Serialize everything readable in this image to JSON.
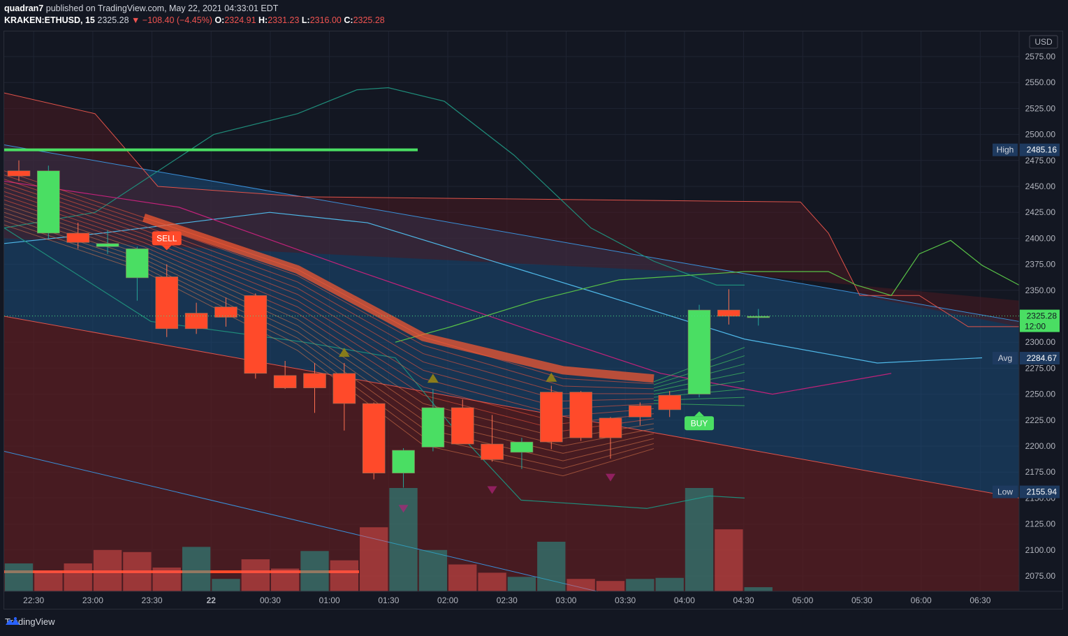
{
  "header": {
    "author": "quadran7",
    "published_text": "published on TradingView.com, May 22, 2021 04:33:01 EDT",
    "symbol": "KRAKEN:ETHUSD, 15",
    "last": "2325.28",
    "change": "▼ −108.40 (−4.45%)",
    "o_label": "O:",
    "o": "2324.91",
    "h_label": "H:",
    "h": "2331.23",
    "l_label": "L:",
    "l": "2316.00",
    "c_label": "C:",
    "c": "2325.28"
  },
  "footer": {
    "brand": "TradingView"
  },
  "colors": {
    "background": "#131722",
    "bull": "#4ade63",
    "bear": "#ff4a2a",
    "price_line": "#4ade80",
    "high_low_box": "#1e3a5f",
    "channel_upper": "#3a78b8",
    "channel_lower": "#6b1f24"
  },
  "chart_data": {
    "type": "candlestick",
    "currency_label": "USD",
    "timeframe": "15",
    "y_ticks": [
      2575,
      2550,
      2525,
      2500,
      2475,
      2450,
      2425,
      2400,
      2375,
      2350,
      2300,
      2275,
      2250,
      2225,
      2200,
      2175,
      2150,
      2125,
      2100,
      2075
    ],
    "y_tick_labels": [
      "2575.00",
      "2550.00",
      "2525.00",
      "2500.00",
      "2475.00",
      "2450.00",
      "2425.00",
      "2400.00",
      "2375.00",
      "2350.00",
      "2300.00",
      "2275.00",
      "2250.00",
      "2225.00",
      "2200.00",
      "2175.00",
      "2150.00",
      "2125.00",
      "2100.00",
      "2075.00"
    ],
    "ylim": [
      2060,
      2600
    ],
    "x_ticks": [
      {
        "label": "22:30",
        "i": 0.5
      },
      {
        "label": "23:00",
        "i": 2.5
      },
      {
        "label": "23:30",
        "i": 4.5
      },
      {
        "label": "22",
        "i": 6.5
      },
      {
        "label": "00:30",
        "i": 8.5
      },
      {
        "label": "01:00",
        "i": 10.5
      },
      {
        "label": "01:30",
        "i": 12.5
      },
      {
        "label": "02:00",
        "i": 14.5
      },
      {
        "label": "02:30",
        "i": 16.5
      },
      {
        "label": "03:00",
        "i": 18.5
      },
      {
        "label": "03:30",
        "i": 20.5
      },
      {
        "label": "04:00",
        "i": 22.5
      },
      {
        "label": "04:30",
        "i": 24.5
      },
      {
        "label": "05:00",
        "i": 26.5
      },
      {
        "label": "05:30",
        "i": 28.5
      },
      {
        "label": "06:00",
        "i": 30.5
      },
      {
        "label": "06:30",
        "i": 32.5
      }
    ],
    "candles": [
      {
        "o": 2465,
        "h": 2475,
        "l": 2455,
        "c": 2460
      },
      {
        "o": 2405,
        "h": 2470,
        "l": 2400,
        "c": 2465
      },
      {
        "o": 2405,
        "h": 2415,
        "l": 2390,
        "c": 2396
      },
      {
        "o": 2392,
        "h": 2408,
        "l": 2385,
        "c": 2395
      },
      {
        "o": 2362,
        "h": 2392,
        "l": 2340,
        "c": 2390
      },
      {
        "o": 2363,
        "h": 2375,
        "l": 2305,
        "c": 2313
      },
      {
        "o": 2328,
        "h": 2338,
        "l": 2308,
        "c": 2313
      },
      {
        "o": 2334,
        "h": 2343,
        "l": 2315,
        "c": 2324
      },
      {
        "o": 2345,
        "h": 2347,
        "l": 2265,
        "c": 2270
      },
      {
        "o": 2268,
        "h": 2282,
        "l": 2255,
        "c": 2256
      },
      {
        "o": 2270,
        "h": 2280,
        "l": 2232,
        "c": 2256
      },
      {
        "o": 2270,
        "h": 2280,
        "l": 2215,
        "c": 2241
      },
      {
        "o": 2241,
        "h": 2242,
        "l": 2168,
        "c": 2174
      },
      {
        "o": 2174,
        "h": 2198,
        "l": 2160,
        "c": 2196
      },
      {
        "o": 2199,
        "h": 2255,
        "l": 2195,
        "c": 2237
      },
      {
        "o": 2237,
        "h": 2245,
        "l": 2203,
        "c": 2202
      },
      {
        "o": 2202,
        "h": 2230,
        "l": 2185,
        "c": 2187
      },
      {
        "o": 2194,
        "h": 2208,
        "l": 2178,
        "c": 2204
      },
      {
        "o": 2252,
        "h": 2258,
        "l": 2197,
        "c": 2204
      },
      {
        "o": 2252,
        "h": 2253,
        "l": 2205,
        "c": 2208
      },
      {
        "o": 2227,
        "h": 2228,
        "l": 2188,
        "c": 2208
      },
      {
        "o": 2239,
        "h": 2242,
        "l": 2220,
        "c": 2228
      },
      {
        "o": 2249,
        "h": 2253,
        "l": 2228,
        "c": 2235
      },
      {
        "o": 2250,
        "h": 2336,
        "l": 2247,
        "c": 2331
      },
      {
        "o": 2331,
        "h": 2351,
        "l": 2317,
        "c": 2325
      },
      {
        "o": 2325,
        "h": 2332,
        "l": 2316,
        "c": 2325
      }
    ],
    "volume": [
      0.27,
      0.2,
      0.27,
      0.4,
      0.38,
      0.23,
      0.43,
      0.12,
      0.31,
      0.22,
      0.39,
      0.3,
      0.62,
      1.0,
      0.4,
      0.26,
      0.18,
      0.14,
      0.48,
      0.12,
      0.1,
      0.12,
      0.13,
      1.0,
      0.6,
      0.04
    ],
    "volume_bull": [
      true,
      false,
      false,
      false,
      false,
      false,
      true,
      true,
      false,
      false,
      true,
      false,
      false,
      true,
      true,
      false,
      false,
      true,
      true,
      false,
      false,
      true,
      true,
      true,
      false,
      true
    ],
    "markers": [
      {
        "type": "SELL",
        "i": 5,
        "price": 2400
      },
      {
        "type": "BUY",
        "i": 23.0,
        "price": 2222
      }
    ],
    "price_labels": [
      {
        "name": "High",
        "value": "2485.16",
        "price": 2485.16
      },
      {
        "name": "Avg",
        "value": "2284.67",
        "price": 2284.67
      },
      {
        "name": "Low",
        "value": "2155.94",
        "price": 2155.94
      }
    ],
    "last_price": {
      "value": "2325.28",
      "countdown": "12:00",
      "price": 2325.28
    }
  }
}
